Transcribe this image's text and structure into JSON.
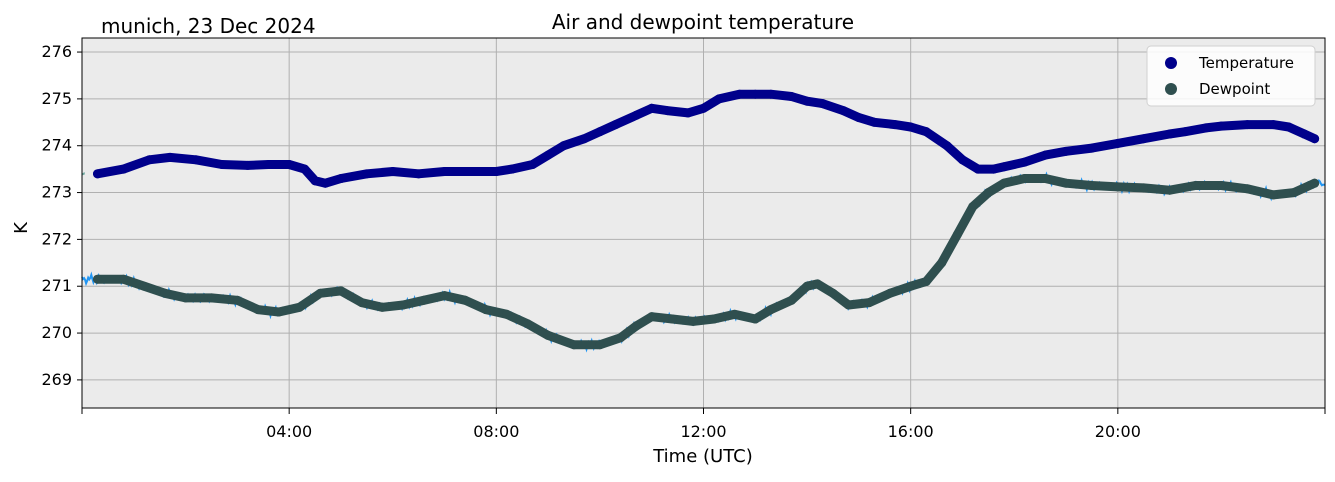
{
  "chart_data": {
    "type": "line",
    "title": "Air and dewpoint temperature",
    "subtitle": "munich, 23 Dec 2024",
    "xlabel": "Time (UTC)",
    "ylabel": "K",
    "x_unit": "hours UTC",
    "xlim": [
      0,
      24
    ],
    "ylim": [
      268.4,
      276.3
    ],
    "x_ticks": [
      4,
      8,
      12,
      16,
      20
    ],
    "x_tick_labels": [
      "04:00",
      "08:00",
      "12:00",
      "16:00",
      "20:00"
    ],
    "y_ticks": [
      269,
      270,
      271,
      272,
      273,
      274,
      275,
      276
    ],
    "y_tick_labels": [
      "269",
      "270",
      "271",
      "272",
      "273",
      "274",
      "275",
      "276"
    ],
    "grid": true,
    "legend_position": "top-right",
    "colors": {
      "background": "#ebebeb",
      "grid": "#b0b0b0",
      "temperature": "#00008b",
      "dewpoint": "#2f4f4f",
      "raw_temperature": "#6fa8a0",
      "raw_dewpoint": "#2196f3"
    },
    "series": [
      {
        "name": "Temperature",
        "color": "#00008b",
        "x": [
          0.3,
          0.8,
          1.3,
          1.7,
          2.2,
          2.7,
          3.2,
          3.6,
          4.0,
          4.3,
          4.5,
          4.7,
          5.0,
          5.5,
          6.0,
          6.5,
          7.0,
          7.5,
          8.0,
          8.3,
          8.7,
          9.0,
          9.3,
          9.7,
          10.0,
          10.3,
          10.7,
          11.0,
          11.3,
          11.7,
          12.0,
          12.3,
          12.7,
          13.0,
          13.3,
          13.7,
          14.0,
          14.3,
          14.7,
          15.0,
          15.3,
          15.7,
          16.0,
          16.3,
          16.7,
          17.0,
          17.3,
          17.6,
          17.8,
          18.2,
          18.6,
          19.0,
          19.5,
          20.0,
          20.5,
          21.0,
          21.3,
          21.7,
          22.0,
          22.5,
          23.0,
          23.3,
          23.6,
          23.8
        ],
        "values": [
          273.4,
          273.5,
          273.7,
          273.75,
          273.7,
          273.6,
          273.58,
          273.6,
          273.6,
          273.5,
          273.25,
          273.2,
          273.3,
          273.4,
          273.45,
          273.4,
          273.45,
          273.45,
          273.45,
          273.5,
          273.6,
          273.8,
          274.0,
          274.15,
          274.3,
          274.45,
          274.65,
          274.8,
          274.75,
          274.7,
          274.8,
          275.0,
          275.1,
          275.1,
          275.1,
          275.05,
          274.95,
          274.9,
          274.75,
          274.6,
          274.5,
          274.45,
          274.4,
          274.3,
          274.0,
          273.7,
          273.5,
          273.5,
          273.55,
          273.65,
          273.8,
          273.88,
          273.95,
          274.05,
          274.15,
          274.25,
          274.3,
          274.38,
          274.42,
          274.45,
          274.45,
          274.4,
          274.25,
          274.15
        ]
      },
      {
        "name": "Dewpoint",
        "color": "#2f4f4f",
        "x": [
          0.3,
          0.8,
          1.2,
          1.6,
          2.0,
          2.5,
          3.0,
          3.4,
          3.8,
          4.2,
          4.6,
          5.0,
          5.4,
          5.8,
          6.2,
          6.6,
          7.0,
          7.4,
          7.8,
          8.2,
          8.6,
          9.0,
          9.5,
          10.0,
          10.4,
          10.7,
          11.0,
          11.4,
          11.8,
          12.2,
          12.6,
          13.0,
          13.3,
          13.7,
          14.0,
          14.2,
          14.5,
          14.8,
          15.2,
          15.6,
          16.0,
          16.3,
          16.6,
          16.9,
          17.2,
          17.5,
          17.8,
          18.2,
          18.6,
          19.0,
          19.5,
          20.0,
          20.5,
          21.0,
          21.5,
          22.0,
          22.5,
          23.0,
          23.4,
          23.8
        ],
        "values": [
          271.15,
          271.15,
          271.0,
          270.85,
          270.75,
          270.75,
          270.7,
          270.5,
          270.45,
          270.55,
          270.85,
          270.9,
          270.65,
          270.55,
          270.6,
          270.7,
          270.8,
          270.7,
          270.5,
          270.4,
          270.2,
          269.95,
          269.75,
          269.75,
          269.9,
          270.15,
          270.35,
          270.3,
          270.25,
          270.3,
          270.4,
          270.3,
          270.5,
          270.7,
          271.0,
          271.05,
          270.85,
          270.6,
          270.65,
          270.85,
          271.0,
          271.1,
          271.5,
          272.1,
          272.7,
          273.0,
          273.2,
          273.3,
          273.3,
          273.2,
          273.15,
          273.12,
          273.1,
          273.05,
          273.15,
          273.15,
          273.08,
          272.95,
          273.0,
          273.2
        ]
      }
    ]
  }
}
